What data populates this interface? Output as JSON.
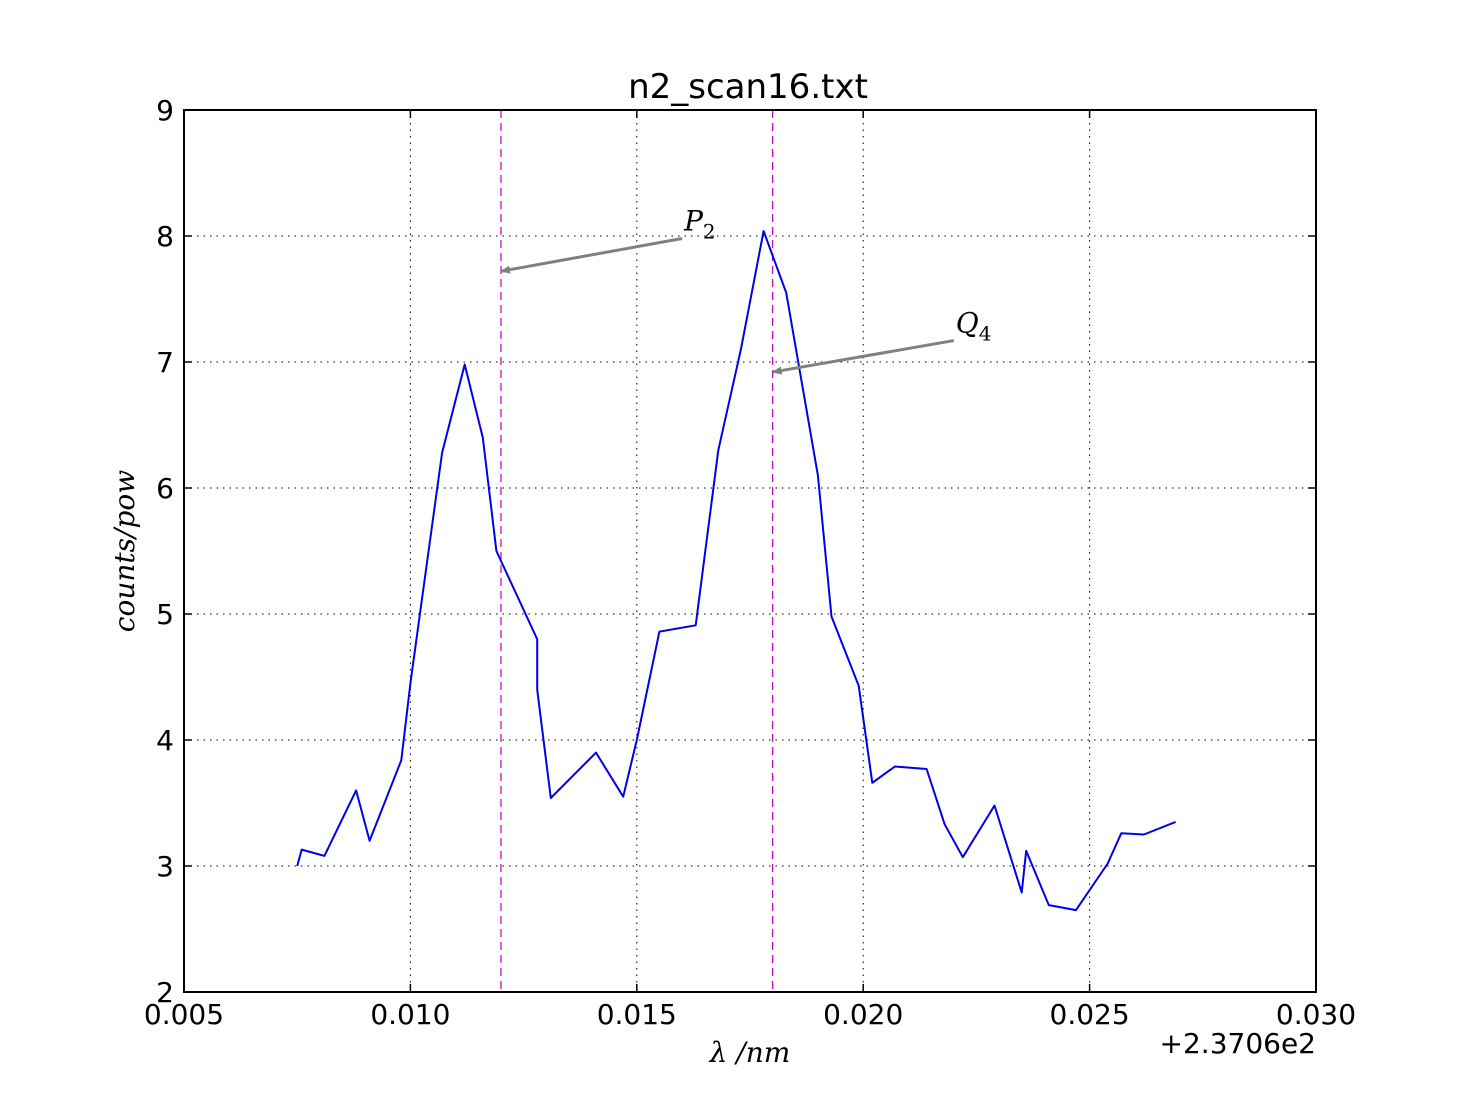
{
  "chart_data": {
    "type": "line",
    "title": "n2_scan16.txt",
    "xlabel": "λ /nm",
    "ylabel": "counts/pow",
    "x_offset_label": "+2.3706e2",
    "xlim": [
      0.005,
      0.03
    ],
    "ylim": [
      2,
      9
    ],
    "xticks": [
      "0.005",
      "0.010",
      "0.015",
      "0.020",
      "0.025",
      "0.030"
    ],
    "yticks": [
      "2",
      "3",
      "4",
      "5",
      "6",
      "7",
      "8",
      "9"
    ],
    "grid": true,
    "series": [
      {
        "color": "#0000ee",
        "x": [
          0.0075,
          0.0076,
          0.0081,
          0.0088,
          0.0091,
          0.0098,
          0.01,
          0.0107,
          0.0112,
          0.0116,
          0.0119,
          0.0128,
          0.0128,
          0.0131,
          0.0141,
          0.0147,
          0.015,
          0.0155,
          0.0163,
          0.0168,
          0.0173,
          0.0178,
          0.0183,
          0.019,
          0.0193,
          0.0199,
          0.0202,
          0.0207,
          0.0214,
          0.0218,
          0.0222,
          0.0229,
          0.0235,
          0.0236,
          0.0241,
          0.0247,
          0.0254,
          0.0257,
          0.0262,
          0.0269
        ],
        "y": [
          3.0,
          3.13,
          3.08,
          3.6,
          3.2,
          3.84,
          4.45,
          6.28,
          6.98,
          6.4,
          5.5,
          4.8,
          4.4,
          3.54,
          3.9,
          3.55,
          4.0,
          4.86,
          4.91,
          6.3,
          7.1,
          8.04,
          7.55,
          6.1,
          4.98,
          4.43,
          3.66,
          3.79,
          3.77,
          3.33,
          3.07,
          3.48,
          2.79,
          3.12,
          2.69,
          2.65,
          3.02,
          3.26,
          3.25,
          3.35
        ]
      }
    ],
    "vlines": [
      {
        "x": 0.012,
        "color": "#bf00bf",
        "style": "dashed"
      },
      {
        "x": 0.018,
        "color": "#bf00bf",
        "style": "dashed"
      }
    ],
    "annotations": [
      {
        "label": "P",
        "sub": "2",
        "text_x": 0.016,
        "text_y": 7.98,
        "arrow_x": 0.012,
        "arrow_y": 7.72,
        "color": "#808080"
      },
      {
        "label": "Q",
        "sub": "4",
        "text_x": 0.022,
        "text_y": 7.17,
        "arrow_x": 0.018,
        "arrow_y": 6.92,
        "color": "#808080"
      }
    ]
  }
}
